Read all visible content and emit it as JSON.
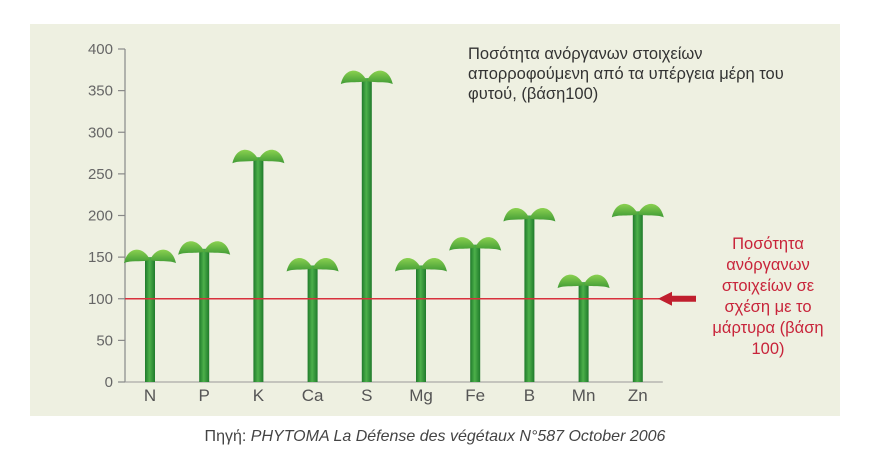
{
  "chart_data": {
    "type": "bar",
    "title": "Ποσότητα ανόργανων στοιχείων απορροφούμενη από τα υπέργεια μέρη του φυτού, (βάση100)",
    "categories": [
      "N",
      "P",
      "K",
      "Ca",
      "S",
      "Mg",
      "Fe",
      "B",
      "Mn",
      "Zn"
    ],
    "values": [
      150,
      160,
      270,
      140,
      365,
      140,
      165,
      200,
      120,
      205
    ],
    "y_ticks": [
      "0",
      "50",
      "100",
      "150",
      "200",
      "250",
      "300",
      "350",
      "400"
    ],
    "ylim": [
      0,
      400
    ],
    "reference_line": {
      "value": 100,
      "color": "#d8313d"
    },
    "reference_note": "Ποσότητα ανόργανων στοιχείων σε σχέση με το μάρτυρα (βάση 100)",
    "grid": false,
    "colors": {
      "stem": "#2f9a3a",
      "leaf": "#6fbf3f",
      "arrow": "#c01f2e",
      "background": "#eef0e1"
    }
  },
  "source": {
    "prefix": "Πηγή: ",
    "title": "PHYTOMA La Défense des végétaux N°587 October 2006"
  }
}
